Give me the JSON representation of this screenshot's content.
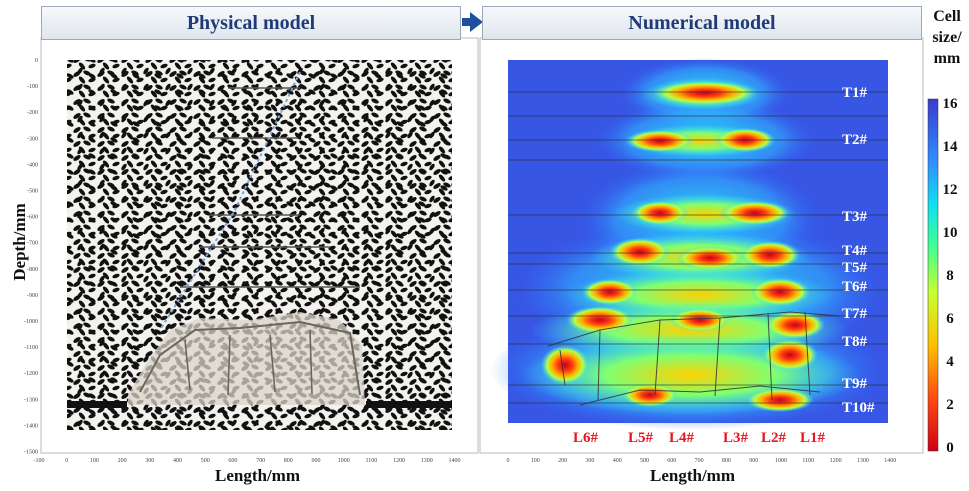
{
  "banners": {
    "left": "Physical model",
    "right": "Numerical model"
  },
  "colorbar": {
    "title_lines": [
      "Cell",
      "size/",
      "mm"
    ],
    "ticks": [
      "16",
      "14",
      "12",
      "10",
      "8",
      "6",
      "4",
      "2",
      "0"
    ],
    "range": [
      0,
      16
    ]
  },
  "physical_panel": {
    "xlabel": "Length/mm",
    "ylabel": "Depth/mm",
    "xticks": [
      "-100",
      "0",
      "100",
      "200",
      "300",
      "400",
      "500",
      "600",
      "700",
      "800",
      "900",
      "1000",
      "1100",
      "1200",
      "1300",
      "1400"
    ],
    "yticks": [
      "0",
      "-100",
      "-200",
      "-300",
      "-400",
      "-500",
      "-600",
      "-700",
      "-800",
      "-900",
      "-1000",
      "-1100",
      "-1200",
      "-1300",
      "-1400",
      "-1500"
    ]
  },
  "numerical_panel": {
    "xlabel": "Length/mm",
    "xticks": [
      "0",
      "100",
      "200",
      "300",
      "400",
      "500",
      "600",
      "700",
      "800",
      "900",
      "1000",
      "1100",
      "1200",
      "1300",
      "1400"
    ],
    "lines_T": [
      "T1#",
      "T2#",
      "T3#",
      "T4#",
      "T5#",
      "T6#",
      "T7#",
      "T8#",
      "T9#",
      "T10#"
    ],
    "lines_L": [
      "L6#",
      "L5#",
      "L4#",
      "L3#",
      "L2#",
      "L1#"
    ]
  },
  "colors": {
    "banner_text": "#1f3a78",
    "label_red": "#e8141e",
    "label_white": "#ffffff",
    "arrow": "#1f4fa0"
  }
}
